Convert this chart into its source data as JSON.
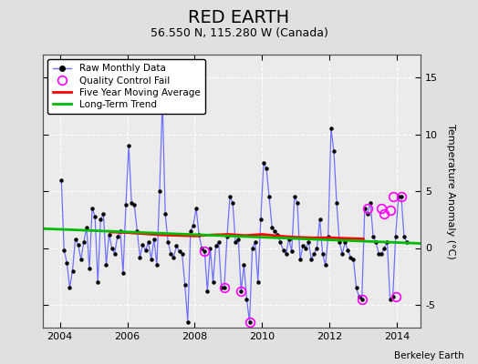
{
  "title": "RED EARTH",
  "subtitle": "56.550 N, 115.280 W (Canada)",
  "ylabel": "Temperature Anomaly (°C)",
  "credit": "Berkeley Earth",
  "xlim": [
    2003.5,
    2014.7
  ],
  "ylim": [
    -7,
    17
  ],
  "yticks": [
    -5,
    0,
    5,
    10,
    15
  ],
  "xticks": [
    2004,
    2006,
    2008,
    2010,
    2012,
    2014
  ],
  "fig_bg_color": "#e0e0e0",
  "plot_bg_color": "#ebebeb",
  "grid_color": "#ffffff",
  "raw_line_color": "#7070ff",
  "raw_dot_color": "#000000",
  "mavg_color": "#ff0000",
  "trend_color": "#00bb00",
  "qc_color": "#ff00ff",
  "raw_x": [
    2004.042,
    2004.125,
    2004.208,
    2004.292,
    2004.375,
    2004.458,
    2004.542,
    2004.625,
    2004.708,
    2004.792,
    2004.875,
    2004.958,
    2005.042,
    2005.125,
    2005.208,
    2005.292,
    2005.375,
    2005.458,
    2005.542,
    2005.625,
    2005.708,
    2005.792,
    2005.875,
    2005.958,
    2006.042,
    2006.125,
    2006.208,
    2006.292,
    2006.375,
    2006.458,
    2006.542,
    2006.625,
    2006.708,
    2006.792,
    2006.875,
    2006.958,
    2007.042,
    2007.125,
    2007.208,
    2007.292,
    2007.375,
    2007.458,
    2007.542,
    2007.625,
    2007.708,
    2007.792,
    2007.875,
    2007.958,
    2008.042,
    2008.125,
    2008.208,
    2008.292,
    2008.375,
    2008.458,
    2008.542,
    2008.625,
    2008.708,
    2008.792,
    2008.875,
    2008.958,
    2009.042,
    2009.125,
    2009.208,
    2009.292,
    2009.375,
    2009.458,
    2009.542,
    2009.625,
    2009.708,
    2009.792,
    2009.875,
    2009.958,
    2010.042,
    2010.125,
    2010.208,
    2010.292,
    2010.375,
    2010.458,
    2010.542,
    2010.625,
    2010.708,
    2010.792,
    2010.875,
    2010.958,
    2011.042,
    2011.125,
    2011.208,
    2011.292,
    2011.375,
    2011.458,
    2011.542,
    2011.625,
    2011.708,
    2011.792,
    2011.875,
    2011.958,
    2012.042,
    2012.125,
    2012.208,
    2012.292,
    2012.375,
    2012.458,
    2012.542,
    2012.625,
    2012.708,
    2012.792,
    2012.875,
    2012.958,
    2013.042,
    2013.125,
    2013.208,
    2013.292,
    2013.375,
    2013.458,
    2013.542,
    2013.625,
    2013.708,
    2013.792,
    2013.875,
    2013.958,
    2014.042,
    2014.125,
    2014.208,
    2014.292
  ],
  "raw_y": [
    6.0,
    -0.2,
    -1.3,
    -3.5,
    -2.0,
    0.8,
    0.3,
    -1.0,
    0.5,
    1.8,
    -1.8,
    3.5,
    2.8,
    -3.0,
    2.5,
    3.0,
    -1.5,
    1.2,
    0.0,
    -0.5,
    1.0,
    1.5,
    -2.2,
    3.8,
    9.0,
    4.0,
    3.8,
    1.5,
    -0.8,
    0.3,
    -0.2,
    0.5,
    -1.0,
    0.8,
    -1.5,
    5.0,
    13.0,
    3.0,
    0.5,
    -0.5,
    -0.8,
    0.2,
    -0.3,
    -0.5,
    -3.2,
    -6.5,
    1.5,
    2.0,
    3.5,
    1.2,
    0.0,
    -0.3,
    -3.8,
    0.0,
    -3.0,
    0.2,
    0.5,
    -3.5,
    -3.5,
    1.0,
    4.5,
    4.0,
    0.5,
    0.8,
    -3.8,
    -1.5,
    -4.5,
    -6.5,
    0.0,
    0.5,
    -3.0,
    2.5,
    7.5,
    7.0,
    4.5,
    1.8,
    1.5,
    1.2,
    0.5,
    -0.2,
    -0.5,
    0.8,
    -0.3,
    4.5,
    4.0,
    -1.0,
    0.2,
    0.0,
    0.5,
    -1.0,
    -0.5,
    0.0,
    2.5,
    -0.5,
    -1.5,
    1.0,
    10.5,
    8.5,
    4.0,
    0.5,
    -0.5,
    0.5,
    -0.2,
    -0.8,
    -1.0,
    -3.5,
    -4.3,
    -4.5,
    3.5,
    3.0,
    4.0,
    1.0,
    0.5,
    -0.5,
    -0.5,
    0.0,
    0.5,
    -4.5,
    -4.3,
    1.0,
    4.5,
    4.5,
    1.0,
    0.5
  ],
  "qc_fail_x": [
    2008.292,
    2008.875,
    2009.375,
    2009.625,
    2012.958,
    2013.125,
    2013.542,
    2013.625,
    2013.792,
    2013.875,
    2013.958,
    2014.125
  ],
  "qc_fail_y": [
    -0.3,
    -3.5,
    -3.8,
    -6.5,
    -4.5,
    3.5,
    3.5,
    3.0,
    3.3,
    4.5,
    -4.3,
    4.5
  ],
  "mavg_x": [
    2005.5,
    2006.0,
    2006.5,
    2007.0,
    2007.5,
    2008.0,
    2008.5,
    2009.0,
    2009.5,
    2010.0,
    2010.5,
    2011.0,
    2011.5,
    2012.0,
    2012.5,
    2013.0
  ],
  "mavg_y": [
    1.4,
    1.35,
    1.25,
    1.15,
    1.1,
    1.05,
    1.15,
    1.2,
    1.1,
    1.2,
    1.05,
    0.95,
    0.9,
    0.9,
    0.85,
    0.8
  ],
  "trend_x": [
    2003.5,
    2014.7
  ],
  "trend_y": [
    1.7,
    0.4
  ],
  "title_fontsize": 14,
  "subtitle_fontsize": 9,
  "legend_fontsize": 7.5,
  "tick_fontsize": 8,
  "ylabel_fontsize": 8
}
